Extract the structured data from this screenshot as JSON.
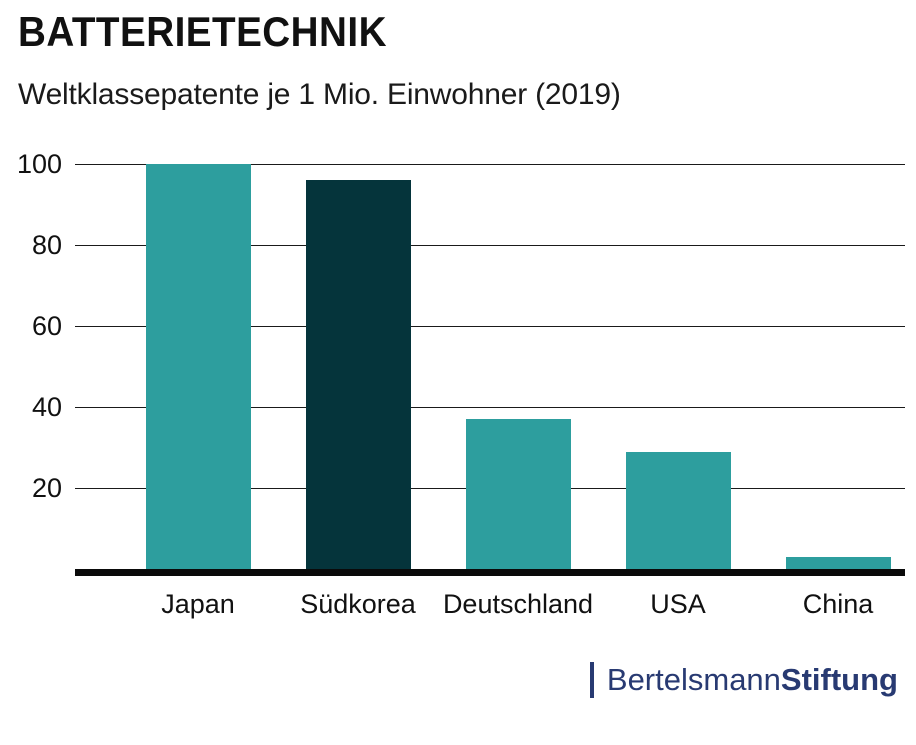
{
  "header": {
    "title": "BATTERIETECHNIK",
    "subtitle": "Weltklassepatente je 1 Mio. Einwohner (2019)"
  },
  "chart_data": {
    "type": "bar",
    "title": "BATTERIETECHNIK",
    "subtitle": "Weltklassepatente je 1 Mio. Einwohner (2019)",
    "categories": [
      "Japan",
      "Südkorea",
      "Deutschland",
      "USA",
      "China"
    ],
    "values": [
      100,
      96,
      37,
      29,
      3
    ],
    "bar_colors": [
      "#2D9E9E",
      "#05343B",
      "#2D9E9E",
      "#2D9E9E",
      "#2D9E9E"
    ],
    "highlight_category": "Südkorea",
    "xlabel": "",
    "ylabel": "",
    "ylim": [
      0,
      100
    ],
    "yticks": [
      20,
      40,
      60,
      80,
      100
    ],
    "grid": true,
    "legend": false
  },
  "colors": {
    "bar_default": "#2D9E9E",
    "bar_highlight": "#05343B",
    "grid_line": "#1a1a1a",
    "axis_line": "#0a0a0a",
    "text": "#111111",
    "brand": "#283A72"
  },
  "footer": {
    "brand_name_regular": "Bertelsmann",
    "brand_name_bold": "Stiftung"
  }
}
